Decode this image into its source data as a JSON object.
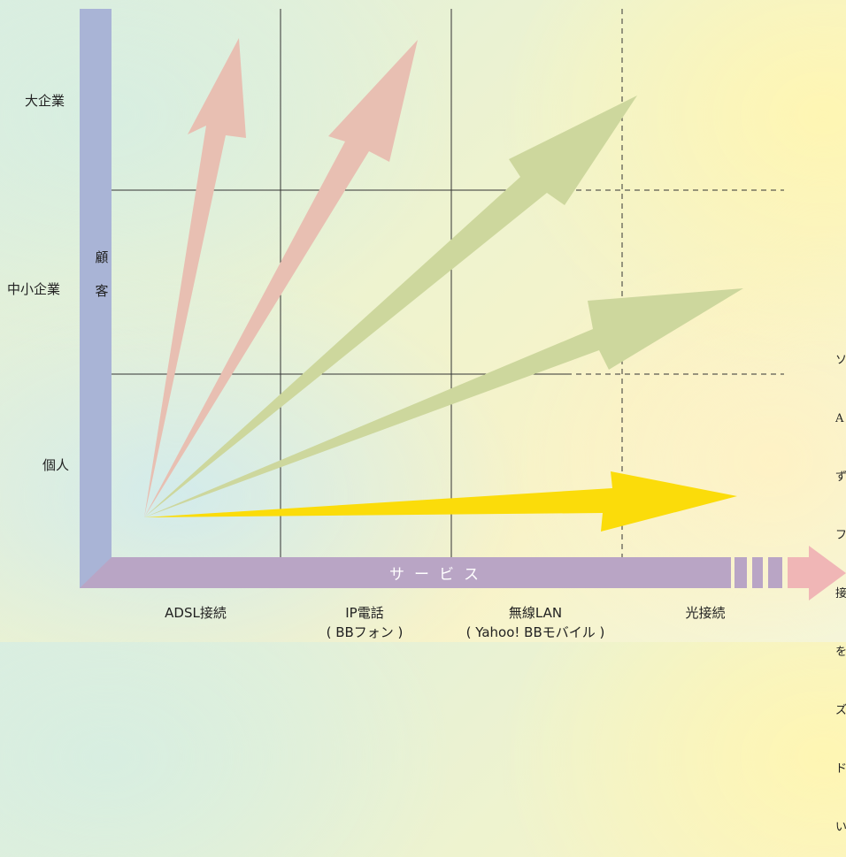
{
  "vertical_axis": {
    "title_chars": [
      "顧",
      "客"
    ],
    "levels": [
      "大企業",
      "中小企業",
      "個人"
    ],
    "color": "#a9b4d6"
  },
  "horizontal_axis": {
    "title": "サービス",
    "services": [
      {
        "name": "ADSL接続",
        "sub": ""
      },
      {
        "name": "IP電話",
        "sub": "( BBフォン )"
      },
      {
        "name": "無線LAN",
        "sub": "( Yahoo! BBモバイル )"
      },
      {
        "name": "光接続",
        "sub": ""
      }
    ],
    "color": "#b9a5c5"
  },
  "arrows": [
    {
      "group": "pink",
      "color": "#e8bfb2"
    },
    {
      "group": "green",
      "color": "#cdd79d"
    },
    {
      "group": "yellow",
      "color": "#fbdc0a"
    }
  ],
  "extension_arrow_color": "#f0b6b6",
  "side_note": [
    "ソ",
    "A",
    "ず",
    "フ",
    "接",
    "を",
    "ズ",
    "ド",
    "い"
  ]
}
